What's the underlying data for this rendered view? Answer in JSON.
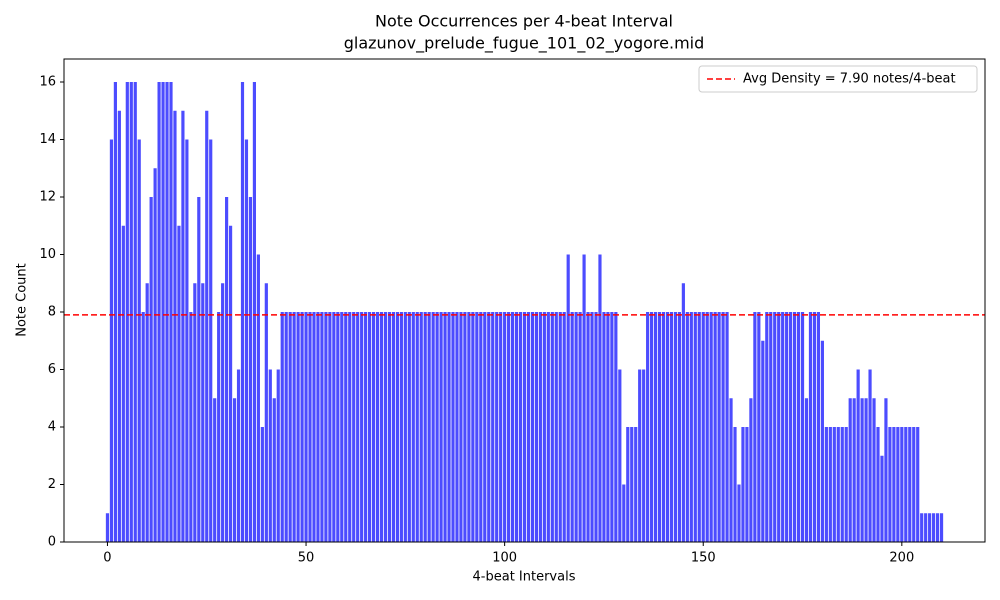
{
  "chart_data": {
    "type": "bar",
    "title": "Note Occurrences per 4-beat Interval",
    "subtitle": "glazunov_prelude_fugue_101_02_yogore.mid",
    "x_label": "4-beat Intervals",
    "y_label": "Note Count",
    "color": "#4c4cff",
    "x": [
      0,
      1,
      2,
      3,
      4,
      5,
      6,
      7,
      8,
      9,
      10,
      11,
      12,
      13,
      14,
      15,
      16,
      17,
      18,
      19,
      20,
      21,
      22,
      23,
      24,
      25,
      26,
      27,
      28,
      29,
      30,
      31,
      32,
      33,
      34,
      35,
      36,
      37,
      38,
      39,
      40,
      41,
      42,
      43,
      44,
      45,
      46,
      47,
      48,
      49,
      50,
      51,
      52,
      53,
      54,
      55,
      56,
      57,
      58,
      59,
      60,
      61,
      62,
      63,
      64,
      65,
      66,
      67,
      68,
      69,
      70,
      71,
      72,
      73,
      74,
      75,
      76,
      77,
      78,
      79,
      80,
      81,
      82,
      83,
      84,
      85,
      86,
      87,
      88,
      89,
      90,
      91,
      92,
      93,
      94,
      95,
      96,
      97,
      98,
      99,
      100,
      101,
      102,
      103,
      104,
      105,
      106,
      107,
      108,
      109,
      110,
      111,
      112,
      113,
      114,
      115,
      116,
      117,
      118,
      119,
      120,
      121,
      122,
      123,
      124,
      125,
      126,
      127,
      128,
      129,
      130,
      131,
      132,
      133,
      134,
      135,
      136,
      137,
      138,
      139,
      140,
      141,
      142,
      143,
      144,
      145,
      146,
      147,
      148,
      149,
      150,
      151,
      152,
      153,
      154,
      155,
      156,
      157,
      158,
      159,
      160,
      161,
      162,
      163,
      164,
      165,
      166,
      167,
      168,
      169,
      170,
      171,
      172,
      173,
      174,
      175,
      176,
      177,
      178,
      179,
      180,
      181,
      182,
      183,
      184,
      185,
      186,
      187,
      188,
      189,
      190,
      191,
      192,
      193,
      194,
      195,
      196,
      197,
      198,
      199,
      200,
      201,
      202,
      203,
      204,
      205,
      206,
      207,
      208,
      209,
      210
    ],
    "values": [
      1,
      14,
      16,
      15,
      11,
      16,
      16,
      16,
      14,
      8,
      9,
      12,
      13,
      16,
      16,
      16,
      16,
      15,
      11,
      15,
      14,
      8,
      9,
      12,
      9,
      15,
      14,
      5,
      8,
      9,
      12,
      11,
      5,
      6,
      16,
      14,
      12,
      16,
      10,
      4,
      9,
      6,
      5,
      6,
      8,
      8,
      8,
      8,
      8,
      8,
      8,
      8,
      8,
      8,
      8,
      8,
      8,
      8,
      8,
      8,
      8,
      8,
      8,
      8,
      8,
      8,
      8,
      8,
      8,
      8,
      8,
      8,
      8,
      8,
      8,
      8,
      8,
      8,
      8,
      8,
      8,
      8,
      8,
      8,
      8,
      8,
      8,
      8,
      8,
      8,
      8,
      8,
      8,
      8,
      8,
      8,
      8,
      8,
      8,
      8,
      8,
      8,
      8,
      8,
      8,
      8,
      8,
      8,
      8,
      8,
      8,
      8,
      8,
      8,
      8,
      8,
      10,
      8,
      8,
      8,
      10,
      8,
      8,
      8,
      10,
      8,
      8,
      8,
      8,
      6,
      2,
      4,
      4,
      4,
      6,
      6,
      8,
      8,
      8,
      8,
      8,
      8,
      8,
      8,
      8,
      9,
      8,
      8,
      8,
      8,
      8,
      8,
      8,
      8,
      8,
      8,
      8,
      5,
      4,
      2,
      4,
      4,
      5,
      8,
      8,
      7,
      8,
      8,
      8,
      8,
      8,
      8,
      8,
      8,
      8,
      8,
      5,
      8,
      8,
      8,
      7,
      4,
      4,
      4,
      4,
      4,
      4,
      5,
      5,
      6,
      5,
      5,
      6,
      5,
      4,
      3,
      5,
      4,
      4,
      4,
      4,
      4,
      4,
      4,
      4,
      1,
      1,
      1,
      1,
      1,
      1
    ],
    "bar_width": 0.8,
    "xlim": [
      -10.94,
      220.94
    ],
    "xticks": [
      0,
      50,
      100,
      150,
      200
    ],
    "ylim": [
      0,
      16.8
    ],
    "yticks": [
      0,
      2,
      4,
      6,
      8,
      10,
      12,
      14,
      16
    ],
    "avg_line": {
      "value": 7.9,
      "label": "Avg Density = 7.90 notes/4-beat",
      "color": "#ff0000"
    },
    "legend": "upper right"
  }
}
